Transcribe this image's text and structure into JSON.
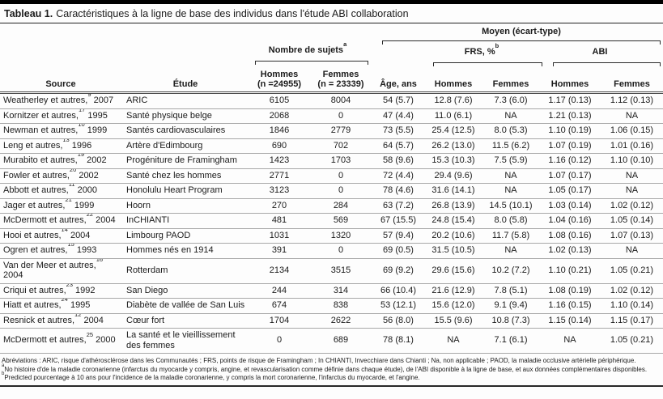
{
  "title": {
    "label": "Tableau 1.",
    "text": "Caractéristiques à la ligne de base des individus dans l'étude ABI collaboration"
  },
  "header": {
    "moyen": "Moyen (écart-type)",
    "nombre": "Nombre de sujets",
    "nombre_sup": "a",
    "frs": "FRS, %",
    "frs_sup": "b",
    "abi": "ABI",
    "cols": {
      "source": "Source",
      "etude": "Étude",
      "hommes_line1": "Hommes",
      "hommes_line2": "(n =24955)",
      "femmes_line1": "Femmes",
      "femmes_line2": "(n = 23339)",
      "age": "Âge, ans",
      "frs_hommes": "Hommes",
      "frs_femmes": "Femmes",
      "abi_hommes": "Hommes",
      "abi_femmes": "Femmes"
    }
  },
  "rows": [
    {
      "source": "Weatherley et autres,",
      "ref": "9",
      "year": "2007",
      "etude": "ARIC",
      "hommes_n": "6105",
      "femmes_n": "8004",
      "age": "54 (5.7)",
      "frs_hommes": "12.8 (7.6)",
      "frs_femmes": "7.3 (6.0)",
      "abi_hommes": "1.17 (0.13)",
      "abi_femmes": "1.12 (0.13)"
    },
    {
      "source": "Kornitzer et autres,",
      "ref": "17",
      "year": "1995",
      "etude": "Santé physique belge",
      "hommes_n": "2068",
      "femmes_n": "0",
      "age": "47 (4.4)",
      "frs_hommes": "11.0 (6.1)",
      "frs_femmes": "NA",
      "abi_hommes": "1.21 (0.13)",
      "abi_femmes": "NA"
    },
    {
      "source": "Newman et autres,",
      "ref": "10",
      "year": "1999",
      "etude": "Santés cardiovasculaires",
      "hommes_n": "1846",
      "femmes_n": "2779",
      "age": "73 (5.5)",
      "frs_hommes": "25.4 (12.5)",
      "frs_femmes": "8.0 (5.3)",
      "abi_hommes": "1.10 (0.19)",
      "abi_femmes": "1.06 (0.15)"
    },
    {
      "source": "Leng et autres,",
      "ref": "13",
      "year": "1996",
      "etude": "Artère d'Edimbourg",
      "hommes_n": "690",
      "femmes_n": "702",
      "age": "64 (5.7)",
      "frs_hommes": "26.2 (13.0)",
      "frs_femmes": "11.5 (6.2)",
      "abi_hommes": "1.07 (0.19)",
      "abi_femmes": "1.01 (0.16)"
    },
    {
      "source": "Murabito et autres,",
      "ref": "19",
      "year": "2002",
      "etude": "Progéniture de Framingham",
      "hommes_n": "1423",
      "femmes_n": "1703",
      "age": "58 (9.6)",
      "frs_hommes": "15.3 (10.3)",
      "frs_femmes": "7.5 (5.9)",
      "abi_hommes": "1.16 (0.12)",
      "abi_femmes": "1.10 (0.10)"
    },
    {
      "source": "Fowler et autres,",
      "ref": "20",
      "year": "2002",
      "etude": "Santé chez les hommes",
      "hommes_n": "2771",
      "femmes_n": "0",
      "age": "72 (4.4)",
      "frs_hommes": "29.4 (9.6)",
      "frs_femmes": "NA",
      "abi_hommes": "1.07 (0.17)",
      "abi_femmes": "NA"
    },
    {
      "source": "Abbott et autres,",
      "ref": "11",
      "year": "2000",
      "etude": "Honolulu Heart Program",
      "hommes_n": "3123",
      "femmes_n": "0",
      "age": "78 (4.6)",
      "frs_hommes": "31.6 (14.1)",
      "frs_femmes": "NA",
      "abi_hommes": "1.05 (0.17)",
      "abi_femmes": "NA"
    },
    {
      "source": "Jager et autres,",
      "ref": "21",
      "year": "1999",
      "etude": "Hoorn",
      "hommes_n": "270",
      "femmes_n": "284",
      "age": "63 (7.2)",
      "frs_hommes": "26.8 (13.9)",
      "frs_femmes": "14.5 (10.1)",
      "abi_hommes": "1.03 (0.14)",
      "abi_femmes": "1.02 (0.12)"
    },
    {
      "source": "McDermott et autres,",
      "ref": "22",
      "year": "2004",
      "etude": "InCHIANTI",
      "hommes_n": "481",
      "femmes_n": "569",
      "age": "67 (15.5)",
      "frs_hommes": "24.8 (15.4)",
      "frs_femmes": "8.0 (5.8)",
      "abi_hommes": "1.04 (0.16)",
      "abi_femmes": "1.05 (0.14)"
    },
    {
      "source": "Hooi et autres,",
      "ref": "14",
      "year": "2004",
      "etude": "Limbourg PAOD",
      "hommes_n": "1031",
      "femmes_n": "1320",
      "age": "57 (9.4)",
      "frs_hommes": "20.2 (10.6)",
      "frs_femmes": "11.7 (5.8)",
      "abi_hommes": "1.08 (0.16)",
      "abi_femmes": "1.07 (0.13)"
    },
    {
      "source": "Ogren et autres,",
      "ref": "15",
      "year": "1993",
      "etude": "Hommes nés en 1914",
      "hommes_n": "391",
      "femmes_n": "0",
      "age": "69 (0.5)",
      "frs_hommes": "31.5 (10.5)",
      "frs_femmes": "NA",
      "abi_hommes": "1.02 (0.13)",
      "abi_femmes": "NA"
    },
    {
      "source": "Van der Meer et autres,",
      "ref": "16",
      "year": "2004",
      "etude": "Rotterdam",
      "hommes_n": "2134",
      "femmes_n": "3515",
      "age": "69 (9.2)",
      "frs_hommes": "29.6 (15.6)",
      "frs_femmes": "10.2 (7.2)",
      "abi_hommes": "1.10 (0.21)",
      "abi_femmes": "1.05 (0.21)"
    },
    {
      "source": "Criqui et autres,",
      "ref": "23",
      "year": "1992",
      "etude": "San Diego",
      "hommes_n": "244",
      "femmes_n": "314",
      "age": "66 (10.4)",
      "frs_hommes": "21.6 (12.9)",
      "frs_femmes": "7.8 (5.1)",
      "abi_hommes": "1.08 (0.19)",
      "abi_femmes": "1.02 (0.12)"
    },
    {
      "source": "Hiatt et autres,",
      "ref": "24",
      "year": "1995",
      "etude": "Diabète de vallée de San Luis",
      "hommes_n": "674",
      "femmes_n": "838",
      "age": "53 (12.1)",
      "frs_hommes": "15.6 (12.0)",
      "frs_femmes": "9.1 (9.4)",
      "abi_hommes": "1.16 (0.15)",
      "abi_femmes": "1.10 (0.14)"
    },
    {
      "source": "Resnick et autres,",
      "ref": "12",
      "year": "2004",
      "etude": "Cœur fort",
      "hommes_n": "1704",
      "femmes_n": "2622",
      "age": "56 (8.0)",
      "frs_hommes": "15.5 (9.6)",
      "frs_femmes": "10.8 (7.3)",
      "abi_hommes": "1.15 (0.14)",
      "abi_femmes": "1.15 (0.17)"
    },
    {
      "source": "McDermott et autres,",
      "ref": "25",
      "year": "2000",
      "etude": "La santé et le vieillissement des femmes",
      "hommes_n": "0",
      "femmes_n": "689",
      "age": "78 (8.1)",
      "frs_hommes": "NA",
      "frs_femmes": "7.1 (6.1)",
      "abi_hommes": "NA",
      "abi_femmes": "1.05 (0.21)"
    }
  ],
  "footnotes": [
    {
      "sup": "",
      "text": "Abréviations : ARIC, risque d'athérosclérose dans les Communautés ; FRS, points de risque de Framingham ; In CHIANTI, Invecchiare dans Chianti ; Na, non applicable ; PAOD, la maladie occlusive artérielle périphérique."
    },
    {
      "sup": "a",
      "text": "No histoire d'de la maladie coronarienne (infarctus du myocarde y compris, angine, et revascularisation comme définie dans chaque étude), de l'ABI disponible à la ligne de base, et aux données complémentaires disponibles."
    },
    {
      "sup": "b",
      "text": "Predicted pourcentage à 10 ans pour l'incidence de la maladie coronarienne, y compris la mort coronarienne, l'infarctus du myocarde, et l'angine."
    }
  ]
}
